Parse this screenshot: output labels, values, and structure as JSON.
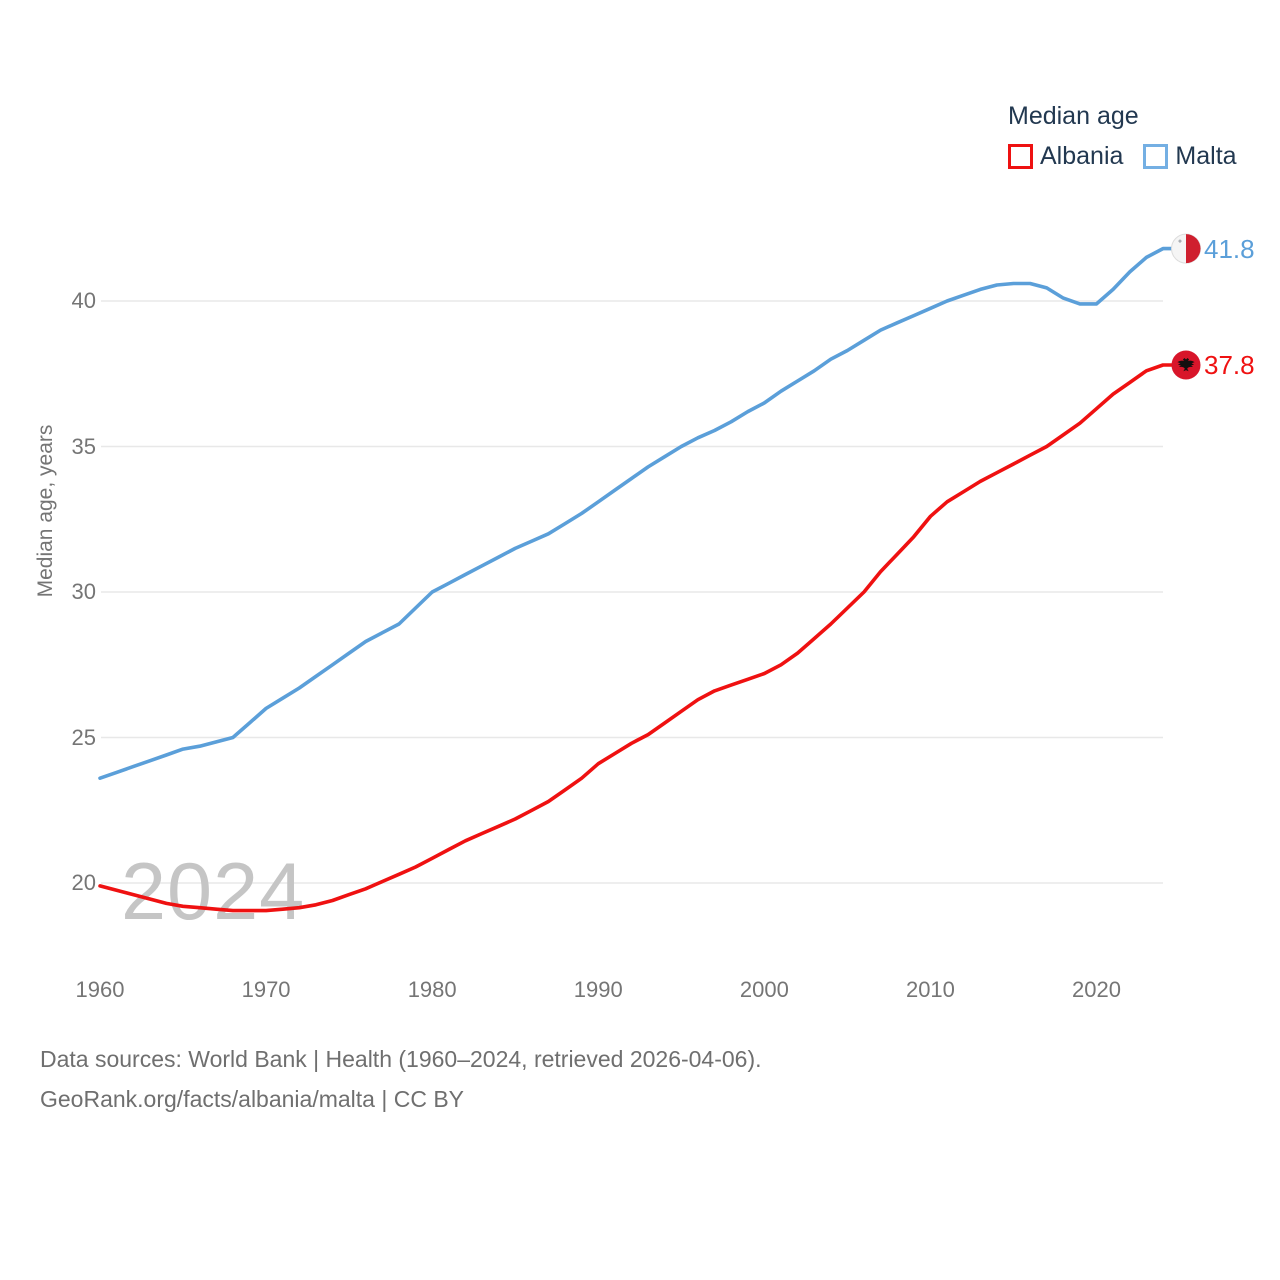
{
  "legend": {
    "title": "Median age",
    "items": [
      {
        "label": "Albania",
        "color": "#ee1111"
      },
      {
        "label": "Malta",
        "color": "#74afe3"
      }
    ]
  },
  "watermark": "2024",
  "y_axis": {
    "title": "Median age, years",
    "tick_labels": [
      "20",
      "25",
      "30",
      "35",
      "40"
    ]
  },
  "x_axis": {
    "tick_labels": [
      "1960",
      "1970",
      "1980",
      "1990",
      "2000",
      "2010",
      "2020"
    ]
  },
  "end_labels": {
    "malta": "41.8",
    "albania": "37.8"
  },
  "footer": {
    "line1": "Data sources: World Bank | Health (1960–2024, retrieved 2026-04-06).",
    "line2": "GeoRank.org/facts/albania/malta | CC BY"
  },
  "colors": {
    "albania_line": "#ef1111",
    "malta_line": "#5b9fd9",
    "gridline": "#e8e8e8",
    "watermark": "#c5c5c5",
    "malta_flag_red": "#cf1f2e",
    "albania_flag_red": "#d8152a"
  },
  "chart_data": {
    "type": "line",
    "title": "Median age",
    "xlabel": "",
    "ylabel": "Median age, years",
    "xlim": [
      1960,
      2024
    ],
    "y_ticks": [
      20,
      25,
      30,
      35,
      40
    ],
    "x_ticks": [
      1960,
      1970,
      1980,
      1990,
      2000,
      2010,
      2020
    ],
    "grid": "horizontal",
    "legend_position": "top-right",
    "x": [
      1960,
      1961,
      1962,
      1963,
      1964,
      1965,
      1966,
      1967,
      1968,
      1969,
      1970,
      1971,
      1972,
      1973,
      1974,
      1975,
      1976,
      1977,
      1978,
      1979,
      1980,
      1981,
      1982,
      1983,
      1984,
      1985,
      1986,
      1987,
      1988,
      1989,
      1990,
      1991,
      1992,
      1993,
      1994,
      1995,
      1996,
      1997,
      1998,
      1999,
      2000,
      2001,
      2002,
      2003,
      2004,
      2005,
      2006,
      2007,
      2008,
      2009,
      2010,
      2011,
      2012,
      2013,
      2014,
      2015,
      2016,
      2017,
      2018,
      2019,
      2020,
      2021,
      2022,
      2023,
      2024
    ],
    "series": [
      {
        "name": "Albania",
        "color": "#ef1111",
        "end_label": 37.8,
        "values": [
          19.9,
          19.75,
          19.6,
          19.45,
          19.3,
          19.2,
          19.15,
          19.1,
          19.05,
          19.05,
          19.05,
          19.1,
          19.15,
          19.25,
          19.4,
          19.6,
          19.8,
          20.05,
          20.3,
          20.55,
          20.85,
          21.15,
          21.45,
          21.7,
          21.95,
          22.2,
          22.5,
          22.8,
          23.2,
          23.6,
          24.1,
          24.45,
          24.8,
          25.1,
          25.5,
          25.9,
          26.3,
          26.6,
          26.8,
          27.0,
          27.2,
          27.5,
          27.9,
          28.4,
          28.9,
          29.45,
          30.0,
          30.7,
          31.3,
          31.9,
          32.6,
          33.1,
          33.45,
          33.8,
          34.1,
          34.4,
          34.7,
          35.0,
          35.4,
          35.8,
          36.3,
          36.8,
          37.2,
          37.6,
          37.8
        ]
      },
      {
        "name": "Malta",
        "color": "#5b9fd9",
        "end_label": 41.8,
        "values": [
          23.6,
          23.8,
          24.0,
          24.2,
          24.4,
          24.6,
          24.7,
          24.85,
          25.0,
          25.5,
          26.0,
          26.35,
          26.7,
          27.1,
          27.5,
          27.9,
          28.3,
          28.6,
          28.9,
          29.45,
          30.0,
          30.3,
          30.6,
          30.9,
          31.2,
          31.5,
          31.75,
          32.0,
          32.35,
          32.7,
          33.1,
          33.5,
          33.9,
          34.3,
          34.65,
          35.0,
          35.3,
          35.55,
          35.85,
          36.2,
          36.5,
          36.9,
          37.25,
          37.6,
          38.0,
          38.3,
          38.65,
          39.0,
          39.25,
          39.5,
          39.75,
          40.0,
          40.2,
          40.4,
          40.55,
          40.6,
          40.6,
          40.45,
          40.1,
          39.9,
          39.9,
          40.4,
          41.0,
          41.5,
          41.8
        ]
      }
    ]
  }
}
